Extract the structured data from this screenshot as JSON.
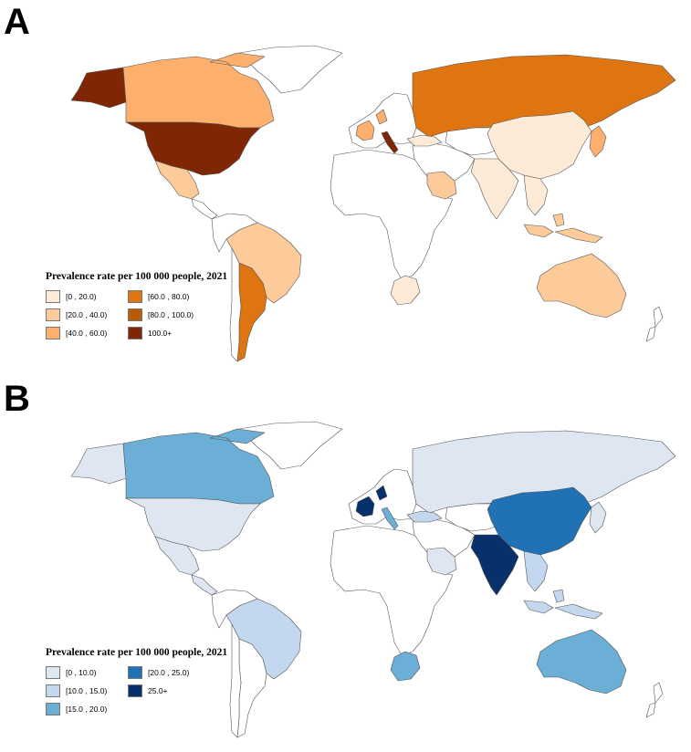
{
  "panels": [
    {
      "letter": "A",
      "legend_title": "Prevalence rate per 100 000 people, 2021",
      "legend": [
        {
          "label": "[0 , 20.0)",
          "color": "#fdebd7"
        },
        {
          "label": "[20.0 , 40.0)",
          "color": "#fdcb9a"
        },
        {
          "label": "[40.0 , 60.0)",
          "color": "#fdb06e"
        },
        {
          "label": "[60.0 , 80.0)",
          "color": "#df7510"
        },
        {
          "label": "[80.0 , 100.0)",
          "color": "#b95a05"
        },
        {
          "label": "100.0+",
          "color": "#7f2704"
        }
      ],
      "regions": {
        "alaska": "#7f2704",
        "canada": "#fdb06e",
        "greenland": "#ffffff",
        "usa": "#7f2704",
        "mexico": "#fdcb9a",
        "central_america": "#ffffff",
        "south_america_north": "#ffffff",
        "brazil": "#fdcb9a",
        "argentina": "#df7510",
        "chile": "#ffffff",
        "africa": "#ffffff",
        "south_africa": "#fdebd7",
        "europe": "#ffffff",
        "europe_highlight": "#fdb06e",
        "italy": "#7f2704",
        "russia": "#df7510",
        "middle_east": "#ffffff",
        "saudi": "#fdcb9a",
        "turkey": "#fdebd7",
        "central_asia": "#ffffff",
        "china": "#fdebd7",
        "india": "#fdebd7",
        "se_asia": "#fdebd7",
        "indonesia": "#fdcb9a",
        "japan": "#fdb06e",
        "australia": "#fdcb9a",
        "new_zealand": "#ffffff"
      }
    },
    {
      "letter": "B",
      "legend_title": "Prevalence rate per 100 000 people, 2021",
      "legend": [
        {
          "label": "[0 , 10.0)",
          "color": "#dee7f1"
        },
        {
          "label": "[10.0 , 15.0)",
          "color": "#c3d8ee"
        },
        {
          "label": "[15.0 , 20.0)",
          "color": "#6baed6"
        },
        {
          "label": "[20.0 , 25.0)",
          "color": "#2171b5"
        },
        {
          "label": "25.0+",
          "color": "#08306b"
        }
      ],
      "regions": {
        "alaska": "#dee7f1",
        "canada": "#6baed6",
        "greenland": "#ffffff",
        "usa": "#dee7f1",
        "mexico": "#dee7f1",
        "central_america": "#dee7f1",
        "south_america_north": "#ffffff",
        "brazil": "#c3d8ee",
        "argentina": "#ffffff",
        "chile": "#ffffff",
        "africa": "#ffffff",
        "south_africa": "#6baed6",
        "europe": "#ffffff",
        "europe_highlight": "#08306b",
        "italy": "#6baed6",
        "russia": "#dee7f1",
        "middle_east": "#ffffff",
        "saudi": "#dee7f1",
        "turkey": "#c3d8ee",
        "central_asia": "#ffffff",
        "china": "#2171b5",
        "india": "#08306b",
        "se_asia": "#c3d8ee",
        "indonesia": "#c3d8ee",
        "japan": "#dee7f1",
        "australia": "#6baed6",
        "new_zealand": "#ffffff"
      }
    }
  ]
}
